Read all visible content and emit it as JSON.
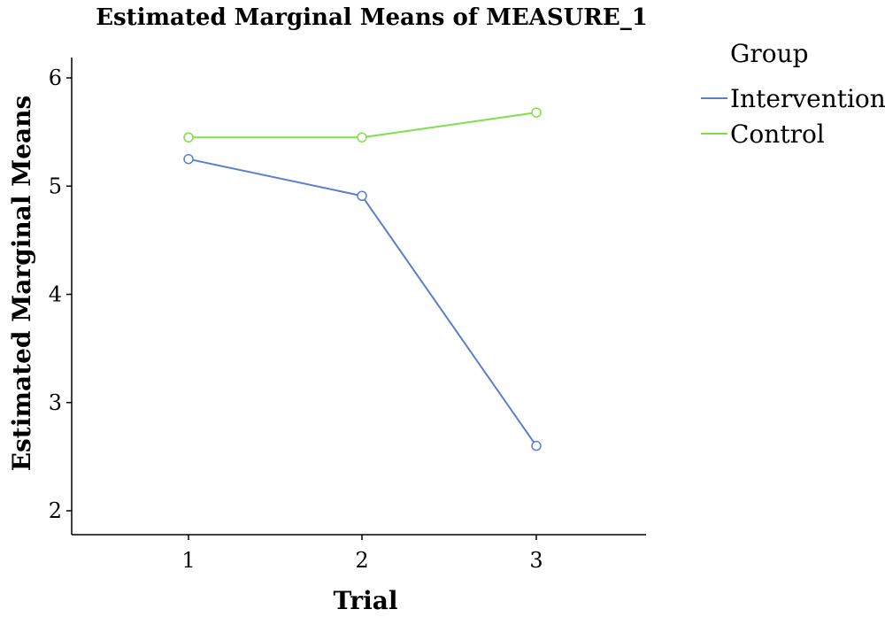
{
  "chart_data": {
    "type": "line",
    "title": "Estimated Marginal Means of MEASURE_1",
    "xlabel": "Trial",
    "ylabel": "Estimated Marginal Means",
    "categories": [
      "1",
      "2",
      "3"
    ],
    "ylim": [
      1.85,
      6.2
    ],
    "yticks": [
      2,
      3,
      4,
      5,
      6
    ],
    "grid": false,
    "legend": {
      "title": "Group",
      "placement": "right"
    },
    "series": [
      {
        "name": "Intervention",
        "color": "#5b7fcc",
        "marker": "open-circle",
        "values": [
          5.25,
          4.91,
          2.6
        ]
      },
      {
        "name": "Control",
        "color": "#7ee04a",
        "marker": "open-circle",
        "values": [
          5.45,
          5.45,
          5.68
        ]
      }
    ]
  }
}
